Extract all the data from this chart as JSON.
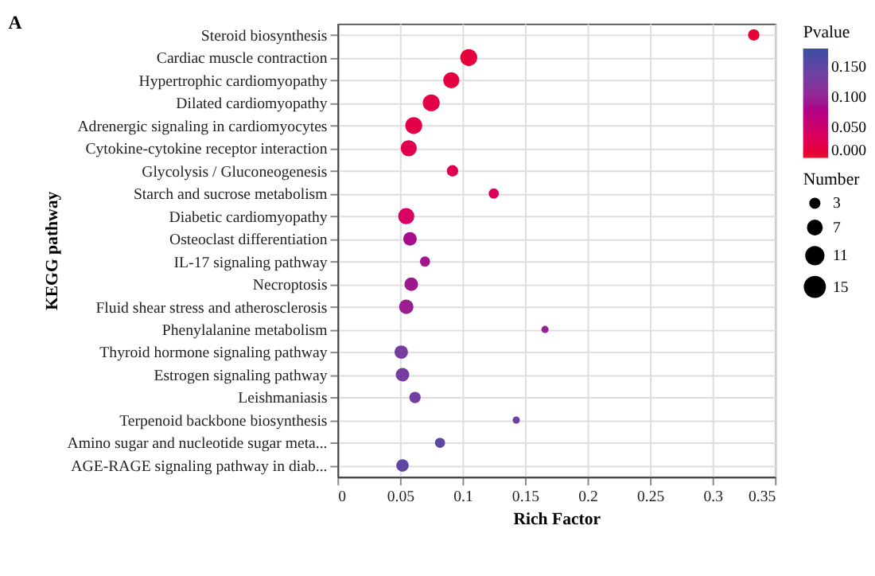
{
  "chart_data": {
    "type": "bubble",
    "title": "A",
    "xlabel": "Rich Factor",
    "ylabel": "KEGG pathway",
    "legend_title": "Number",
    "clabel": "Pvalue",
    "categories": [
      "Steroid biosynthesis",
      "Cardiac muscle contraction",
      "Hypertrophic cardiomyopathy",
      "Dilated cardiomyopathy",
      "Adrenergic signaling in cardiomyocytes",
      "Cytokine-cytokine receptor interaction",
      "Glycolysis / Gluconeogenesis",
      "Starch and sucrose metabolism",
      "Diabetic cardiomyopathy",
      "Osteoclast differentiation",
      "IL-17 signaling pathway",
      "Necroptosis",
      "Fluid shear stress and atherosclerosis",
      "Phenylalanine metabolism",
      "Thyroid hormone signaling pathway",
      "Estrogen signaling pathway",
      "Leishmaniasis",
      "Terpenoid backbone biosynthesis",
      "Amino sugar and nucleotide sugar meta...",
      "AGE-RAGE signaling pathway in diab..."
    ],
    "values": [
      0.333,
      0.105,
      0.091,
      0.075,
      0.061,
      0.057,
      0.092,
      0.125,
      0.055,
      0.058,
      0.07,
      0.059,
      0.055,
      0.166,
      0.051,
      0.052,
      0.062,
      0.143,
      0.082,
      0.052
    ],
    "sizes": [
      5,
      11,
      10,
      11,
      11,
      10,
      5,
      4,
      10,
      7,
      4,
      7,
      8,
      2,
      7,
      7,
      5,
      2,
      4,
      6
    ],
    "size_legend": [
      3,
      7,
      11,
      15
    ],
    "cvalues": [
      0.01,
      0.01,
      0.015,
      0.02,
      0.02,
      0.025,
      0.03,
      0.035,
      0.04,
      0.085,
      0.09,
      0.09,
      0.095,
      0.1,
      0.13,
      0.13,
      0.135,
      0.14,
      0.15,
      0.15
    ],
    "clim": [
      0,
      0.18
    ],
    "cticks": [
      {
        "value": 0,
        "label": "0.000"
      },
      {
        "value": 0.05,
        "label": "0.050"
      },
      {
        "value": 0.1,
        "label": "0.100"
      },
      {
        "value": 0.15,
        "label": "0.150"
      }
    ],
    "orientation": "horizontal",
    "xlim": [
      0,
      0.35
    ],
    "xticks": [
      0,
      0.05,
      0.1,
      0.15,
      0.2,
      0.25,
      0.3,
      0.35
    ],
    "grid": true
  }
}
